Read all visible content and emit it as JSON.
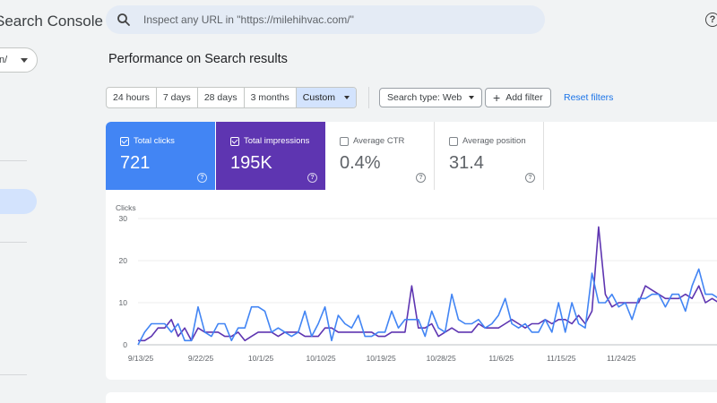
{
  "app": {
    "title": "Search Console"
  },
  "sidebar": {
    "property_label": "n/"
  },
  "search": {
    "placeholder": "Inspect any URL in \"https://milehihvac.com/\""
  },
  "page": {
    "title": "Performance on Search results"
  },
  "date_range": {
    "options": [
      "24 hours",
      "7 days",
      "28 days",
      "3 months",
      "Custom"
    ],
    "selected": "Custom"
  },
  "filters": {
    "search_type": "Search type: Web",
    "add_filter": "Add filter",
    "reset": "Reset filters"
  },
  "metrics": {
    "clicks": {
      "label": "Total clicks",
      "value": "721",
      "checked": true,
      "color": "#4285f4"
    },
    "impressions": {
      "label": "Total impressions",
      "value": "195K",
      "checked": true,
      "color": "#5e35b1"
    },
    "ctr": {
      "label": "Average CTR",
      "value": "0.4%",
      "checked": false
    },
    "position": {
      "label": "Average position",
      "value": "31.4",
      "checked": false
    }
  },
  "icons": [
    "search-icon",
    "help-icon",
    "chevron-down-icon",
    "checkbox-icon",
    "plus-icon"
  ],
  "chart_data": {
    "type": "line",
    "ylabel": "Clicks",
    "ylim": [
      0,
      30
    ],
    "yticks": [
      0,
      10,
      20,
      30
    ],
    "x_tick_labels": [
      "9/13/25",
      "9/22/25",
      "10/1/25",
      "10/10/25",
      "10/19/25",
      "10/28/25",
      "11/6/25",
      "11/15/25",
      "11/24/25"
    ],
    "series": [
      {
        "name": "Clicks",
        "color": "#4285f4",
        "values": [
          0,
          3,
          5,
          5,
          5,
          3,
          5,
          1,
          1,
          9,
          3,
          2,
          5,
          5,
          1,
          4,
          4,
          9,
          9,
          8,
          3,
          4,
          3,
          2,
          3,
          8,
          2,
          5,
          9,
          1,
          7,
          5,
          4,
          7,
          2,
          2,
          3,
          3,
          8,
          4,
          6,
          6,
          6,
          2,
          8,
          4,
          3,
          12,
          6,
          5,
          5,
          6,
          4,
          5,
          7,
          11,
          5,
          4,
          5,
          3,
          3,
          6,
          3,
          10,
          3,
          10,
          5,
          4,
          17,
          10,
          10,
          12,
          9,
          10,
          6,
          11,
          11,
          12,
          12,
          9,
          12,
          12,
          8,
          14,
          18,
          12,
          12,
          11
        ]
      },
      {
        "name": "Impressions",
        "color": "#5e35b1",
        "values": [
          1,
          1,
          2,
          4,
          4,
          6,
          2,
          4,
          1,
          4,
          3,
          3,
          3,
          2,
          2,
          3,
          1,
          2,
          3,
          3,
          3,
          2,
          3,
          3,
          3,
          2,
          2,
          2,
          4,
          4,
          3,
          3,
          3,
          3,
          3,
          3,
          2,
          2,
          3,
          3,
          3,
          14,
          4,
          4,
          5,
          2,
          3,
          4,
          3,
          3,
          3,
          5,
          4,
          4,
          4,
          5,
          6,
          5,
          4,
          5,
          5,
          6,
          5,
          6,
          6,
          5,
          7,
          5,
          8,
          28,
          12,
          9,
          10,
          10,
          10,
          10,
          14,
          13,
          12,
          11,
          11,
          11,
          12,
          11,
          14,
          10,
          11,
          10
        ]
      }
    ]
  }
}
